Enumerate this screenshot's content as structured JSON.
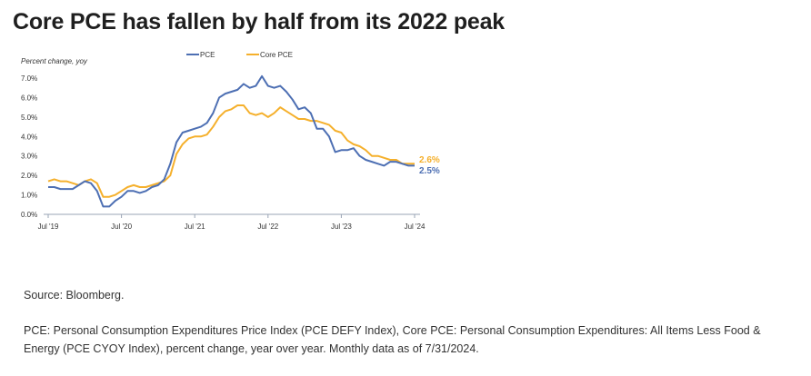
{
  "title": "Core PCE has fallen by half from its 2022 peak",
  "source_text": "Source: Bloomberg.",
  "footnote": "PCE: Personal Consumption Expenditures Price Index (PCE DEFY Index), Core PCE: Personal Consumption Expenditures: All Items Less Food & Energy (PCE CYOY Index), percent change, year over year. Monthly data as of 7/31/2024.",
  "chart_data": {
    "type": "line",
    "title": "",
    "xlabel": "",
    "ylabel": "Percent change, yoy",
    "ylim": [
      0,
      7
    ],
    "y_ticks": [
      "0.0%",
      "1.0%",
      "2.0%",
      "3.0%",
      "4.0%",
      "5.0%",
      "6.0%",
      "7.0%"
    ],
    "x_ticks": [
      "Jul '19",
      "Jul '20",
      "Jul '21",
      "Jul '22",
      "Jul '23",
      "Jul '24"
    ],
    "legend_position": "top-center",
    "grid": false,
    "x": [
      "2019-07",
      "2019-08",
      "2019-09",
      "2019-10",
      "2019-11",
      "2019-12",
      "2020-01",
      "2020-02",
      "2020-03",
      "2020-04",
      "2020-05",
      "2020-06",
      "2020-07",
      "2020-08",
      "2020-09",
      "2020-10",
      "2020-11",
      "2020-12",
      "2021-01",
      "2021-02",
      "2021-03",
      "2021-04",
      "2021-05",
      "2021-06",
      "2021-07",
      "2021-08",
      "2021-09",
      "2021-10",
      "2021-11",
      "2021-12",
      "2022-01",
      "2022-02",
      "2022-03",
      "2022-04",
      "2022-05",
      "2022-06",
      "2022-07",
      "2022-08",
      "2022-09",
      "2022-10",
      "2022-11",
      "2022-12",
      "2023-01",
      "2023-02",
      "2023-03",
      "2023-04",
      "2023-05",
      "2023-06",
      "2023-07",
      "2023-08",
      "2023-09",
      "2023-10",
      "2023-11",
      "2023-12",
      "2024-01",
      "2024-02",
      "2024-03",
      "2024-04",
      "2024-05",
      "2024-06",
      "2024-07"
    ],
    "series": [
      {
        "name": "PCE",
        "color": "#4d6fb3",
        "end_label": "2.5%",
        "values": [
          1.4,
          1.4,
          1.3,
          1.3,
          1.3,
          1.5,
          1.7,
          1.6,
          1.2,
          0.4,
          0.4,
          0.7,
          0.9,
          1.2,
          1.2,
          1.1,
          1.2,
          1.4,
          1.5,
          1.8,
          2.6,
          3.7,
          4.2,
          4.3,
          4.4,
          4.5,
          4.7,
          5.2,
          6.0,
          6.2,
          6.3,
          6.4,
          6.7,
          6.5,
          6.6,
          7.1,
          6.6,
          6.5,
          6.6,
          6.3,
          5.9,
          5.4,
          5.5,
          5.2,
          4.4,
          4.4,
          4.0,
          3.2,
          3.3,
          3.3,
          3.4,
          3.0,
          2.8,
          2.7,
          2.6,
          2.5,
          2.7,
          2.7,
          2.6,
          2.5,
          2.5
        ]
      },
      {
        "name": "Core PCE",
        "color": "#f5b02c",
        "end_label": "2.6%",
        "values": [
          1.7,
          1.8,
          1.7,
          1.7,
          1.6,
          1.5,
          1.7,
          1.8,
          1.6,
          0.9,
          0.9,
          1.0,
          1.2,
          1.4,
          1.5,
          1.4,
          1.4,
          1.5,
          1.6,
          1.7,
          2.0,
          3.1,
          3.6,
          3.9,
          4.0,
          4.0,
          4.1,
          4.5,
          5.0,
          5.3,
          5.4,
          5.6,
          5.6,
          5.2,
          5.1,
          5.2,
          5.0,
          5.2,
          5.5,
          5.3,
          5.1,
          4.9,
          4.9,
          4.8,
          4.8,
          4.7,
          4.6,
          4.3,
          4.2,
          3.8,
          3.6,
          3.5,
          3.3,
          3.0,
          3.0,
          2.9,
          2.8,
          2.8,
          2.6,
          2.6,
          2.6
        ]
      }
    ]
  }
}
